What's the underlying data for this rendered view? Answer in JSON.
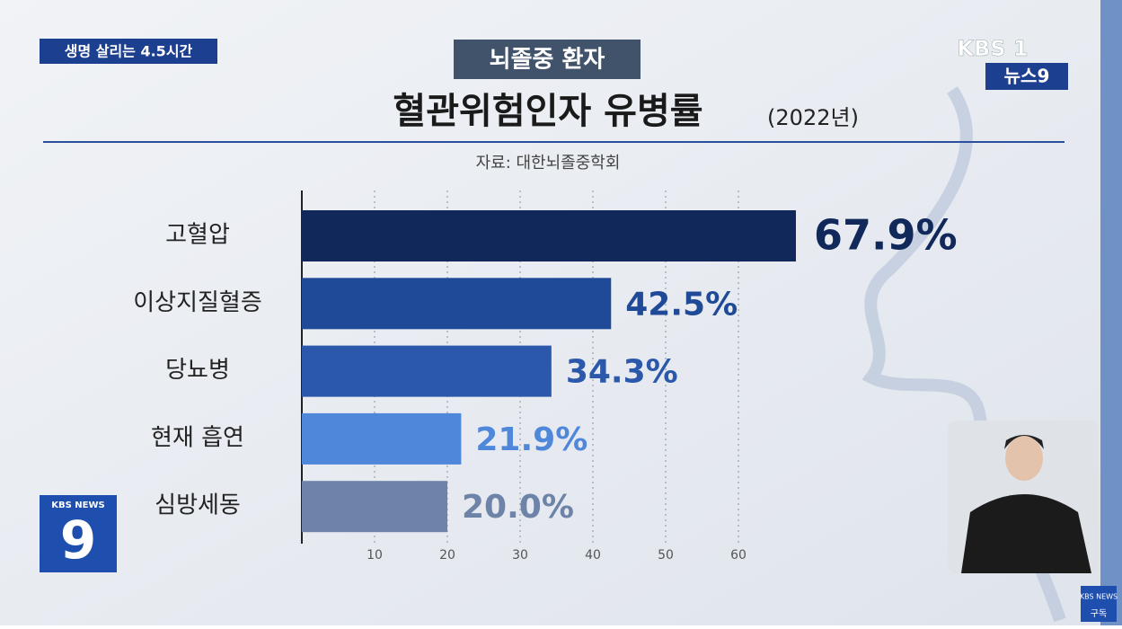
{
  "broadcast": {
    "segment": "생명 살리는 4.5시간",
    "channel": "KBS 1",
    "program": "뉴스9",
    "corner_logo": "KBS NEWS",
    "corner_number": "9",
    "subscribe_logo": "KBS NEWS",
    "subscribe": "구독"
  },
  "chart_data": {
    "type": "hbar",
    "badge": "뇌졸중 환자",
    "title": "혈관위험인자 유병률",
    "subtitle": "(2022년)",
    "source": "자료: 대한뇌졸중학회",
    "categories": [
      "고혈압",
      "이상지질혈증",
      "당뇨병",
      "현재 흡연",
      "심방세동"
    ],
    "values": [
      67.9,
      42.5,
      34.3,
      21.9,
      20.0
    ],
    "value_labels": [
      "67.9%",
      "42.5%",
      "34.3%",
      "21.9%",
      "20.0%"
    ],
    "colors": [
      "#10295a",
      "#1f4a98",
      "#2b58ab",
      "#4f87da",
      "#6d83a8"
    ],
    "xlim": [
      0,
      70
    ],
    "xticks": [
      10,
      20,
      30,
      40,
      50,
      60
    ],
    "grid": true
  }
}
